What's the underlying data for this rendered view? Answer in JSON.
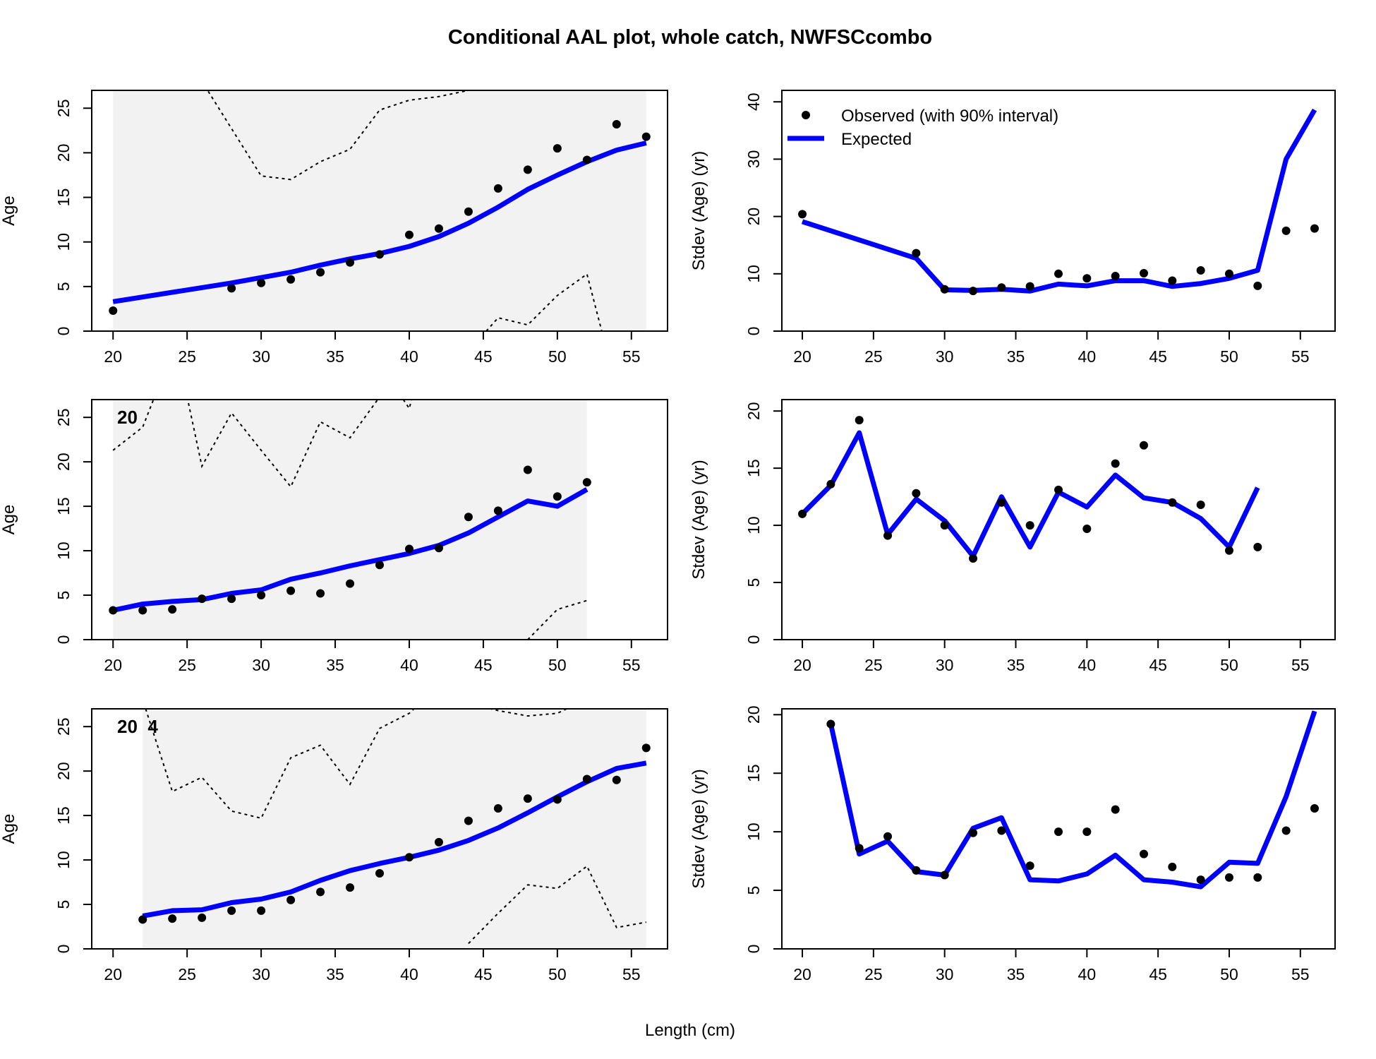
{
  "figure": {
    "title": "Conditional AAL plot, whole catch, NWFSCcombo",
    "xlabel": "Length (cm)"
  },
  "legend": {
    "observed_label": "Observed (with 90% interval)",
    "expected_label": "Expected"
  },
  "colors": {
    "expected": "#0000ff",
    "observed": "#000000",
    "interval": "#000000",
    "shade": "#f2f2f2"
  },
  "chart_data": [
    {
      "type": "line",
      "panel": "age-1",
      "row": 0,
      "col": 0,
      "ylabel": "Age",
      "panel_label": "",
      "xlim": [
        20,
        56
      ],
      "ylim": [
        0,
        27
      ],
      "xticks": [
        20,
        25,
        30,
        35,
        40,
        45,
        50,
        55
      ],
      "yticks": [
        0,
        5,
        10,
        15,
        20,
        25
      ],
      "shade_range": [
        20,
        56
      ],
      "observed": {
        "x": [
          20,
          28,
          30,
          32,
          34,
          36,
          38,
          40,
          42,
          44,
          46,
          48,
          50,
          52,
          54,
          56
        ],
        "y": [
          2.3,
          4.8,
          5.4,
          5.8,
          6.6,
          7.7,
          8.6,
          10.8,
          11.5,
          13.4,
          16.0,
          18.1,
          20.5,
          19.2,
          23.2,
          21.8
        ]
      },
      "expected": {
        "x": [
          20,
          28,
          30,
          32,
          34,
          36,
          38,
          40,
          42,
          44,
          46,
          48,
          50,
          52,
          54,
          56
        ],
        "y": [
          3.3,
          5.4,
          6.0,
          6.6,
          7.4,
          8.1,
          8.7,
          9.5,
          10.6,
          12.1,
          13.9,
          15.9,
          17.5,
          19.0,
          20.3,
          21.1
        ]
      },
      "upper": {
        "x": [
          26.2,
          30,
          32,
          34,
          36,
          38,
          40,
          42,
          44,
          44.7
        ],
        "y": [
          27.5,
          17.4,
          17.0,
          19.0,
          20.4,
          24.8,
          25.9,
          26.3,
          27.0,
          27.5
        ]
      },
      "lower": {
        "x": [
          45.2,
          46,
          48,
          50,
          52,
          53.0
        ],
        "y": [
          0,
          1.5,
          0.7,
          4.0,
          6.4,
          0
        ]
      }
    },
    {
      "type": "line",
      "panel": "sd-1",
      "row": 0,
      "col": 1,
      "ylabel": "Stdev (Age) (yr)",
      "xlim": [
        20,
        56
      ],
      "ylim": [
        0,
        42
      ],
      "xticks": [
        20,
        25,
        30,
        35,
        40,
        45,
        50,
        55
      ],
      "yticks": [
        0,
        10,
        20,
        30,
        40
      ],
      "observed": {
        "x": [
          20,
          28,
          30,
          32,
          34,
          36,
          38,
          40,
          42,
          44,
          46,
          48,
          50,
          52,
          54,
          56
        ],
        "y": [
          20.4,
          13.6,
          7.3,
          7.0,
          7.6,
          7.8,
          10.0,
          9.2,
          9.6,
          10.1,
          8.8,
          10.6,
          10.0,
          7.9,
          17.5,
          17.9
        ]
      },
      "expected": {
        "x": [
          20,
          28,
          30,
          32,
          34,
          36,
          38,
          40,
          42,
          44,
          46,
          48,
          50,
          52,
          54,
          56
        ],
        "y": [
          19.1,
          12.7,
          7.2,
          7.1,
          7.3,
          7.0,
          8.2,
          7.9,
          8.8,
          8.8,
          7.8,
          8.3,
          9.2,
          10.6,
          30.0,
          38.6
        ]
      }
    },
    {
      "type": "line",
      "panel": "age-2",
      "row": 1,
      "col": 0,
      "ylabel": "Age",
      "panel_label": "20",
      "xlim": [
        20,
        56
      ],
      "ylim": [
        0,
        27
      ],
      "xticks": [
        20,
        25,
        30,
        35,
        40,
        45,
        50,
        55
      ],
      "yticks": [
        0,
        5,
        10,
        15,
        20,
        25
      ],
      "shade_range": [
        20,
        52
      ],
      "observed": {
        "x": [
          20,
          22,
          24,
          26,
          28,
          30,
          32,
          34,
          36,
          38,
          40,
          42,
          44,
          46,
          48,
          50,
          52
        ],
        "y": [
          3.3,
          3.3,
          3.4,
          4.6,
          4.6,
          5.0,
          5.5,
          5.2,
          6.3,
          8.4,
          10.2,
          10.3,
          13.8,
          14.5,
          19.1,
          16.1,
          17.7
        ]
      },
      "expected": {
        "x": [
          20,
          22,
          24,
          26,
          28,
          30,
          32,
          34,
          36,
          38,
          40,
          42,
          44,
          46,
          48,
          50,
          52
        ],
        "y": [
          3.3,
          4.0,
          4.3,
          4.5,
          5.2,
          5.6,
          6.8,
          7.5,
          8.3,
          9.0,
          9.7,
          10.6,
          12.0,
          13.8,
          15.6,
          15.0,
          16.9
        ]
      },
      "upper": [
        {
          "x": [
            20,
            22,
            22.8
          ],
          "y": [
            21.3,
            23.9,
            27.3
          ]
        },
        {
          "x": [
            25.0,
            26,
            28,
            30,
            32,
            34,
            36,
            38,
            38.5
          ],
          "y": [
            27.3,
            19.5,
            25.5,
            21.3,
            17.2,
            24.5,
            22.7,
            27.3,
            28.0
          ]
        },
        {
          "x": [
            39.6,
            40,
            40.2
          ],
          "y": [
            27.0,
            26.0,
            27.3
          ]
        }
      ],
      "lower": {
        "x": [
          48.0,
          50,
          52
        ],
        "y": [
          0,
          3.4,
          4.4
        ]
      }
    },
    {
      "type": "line",
      "panel": "sd-2",
      "row": 1,
      "col": 1,
      "ylabel": "Stdev (Age) (yr)",
      "xlim": [
        20,
        56
      ],
      "ylim": [
        0,
        21
      ],
      "xticks": [
        20,
        25,
        30,
        35,
        40,
        45,
        50,
        55
      ],
      "yticks": [
        0,
        5,
        10,
        15,
        20
      ],
      "observed": {
        "x": [
          20,
          22,
          24,
          26,
          28,
          30,
          32,
          34,
          36,
          38,
          40,
          42,
          44,
          46,
          48,
          50,
          52
        ],
        "y": [
          11.0,
          13.6,
          19.2,
          9.1,
          12.8,
          10.0,
          7.1,
          12.0,
          10.0,
          13.1,
          9.7,
          15.4,
          17.0,
          12.0,
          11.8,
          7.8,
          8.1
        ]
      },
      "expected": {
        "x": [
          20,
          22,
          24,
          26,
          28,
          30,
          32,
          34,
          36,
          38,
          40,
          42,
          44,
          46,
          48,
          50,
          52
        ],
        "y": [
          11.0,
          13.5,
          18.1,
          9.2,
          12.3,
          10.4,
          7.3,
          12.5,
          8.1,
          12.9,
          11.6,
          14.4,
          12.4,
          12.0,
          10.6,
          8.1,
          13.3
        ]
      }
    },
    {
      "type": "line",
      "panel": "age-3",
      "row": 2,
      "col": 0,
      "ylabel": "Age",
      "panel_label": "20  4",
      "xlim": [
        20,
        56
      ],
      "ylim": [
        0,
        27
      ],
      "xticks": [
        20,
        25,
        30,
        35,
        40,
        45,
        50,
        55
      ],
      "yticks": [
        0,
        5,
        10,
        15,
        20,
        25
      ],
      "shade_range": [
        22,
        56
      ],
      "observed": {
        "x": [
          22,
          24,
          26,
          28,
          30,
          32,
          34,
          36,
          38,
          40,
          42,
          44,
          46,
          48,
          50,
          52,
          54,
          56
        ],
        "y": [
          3.3,
          3.4,
          3.5,
          4.3,
          4.3,
          5.5,
          6.4,
          6.9,
          8.5,
          10.3,
          12.0,
          14.4,
          15.8,
          16.9,
          16.8,
          19.1,
          19.0,
          22.6
        ]
      },
      "expected": {
        "x": [
          22,
          24,
          26,
          28,
          30,
          32,
          34,
          36,
          38,
          40,
          42,
          44,
          46,
          48,
          50,
          52,
          54,
          56
        ],
        "y": [
          3.7,
          4.3,
          4.4,
          5.2,
          5.6,
          6.4,
          7.7,
          8.8,
          9.6,
          10.3,
          11.1,
          12.2,
          13.6,
          15.3,
          17.1,
          18.8,
          20.3,
          20.9
        ]
      },
      "upper": [
        {
          "x": [
            22.2,
            24,
            26,
            28,
            30,
            32,
            34,
            36,
            38,
            40,
            40.5
          ],
          "y": [
            27.0,
            17.7,
            19.3,
            15.5,
            14.7,
            21.5,
            22.9,
            18.5,
            24.8,
            26.5,
            27.3
          ]
        },
        {
          "x": [
            45.0,
            46,
            48,
            50,
            51.0
          ],
          "y": [
            27.2,
            26.8,
            26.2,
            26.5,
            27.3
          ]
        }
      ],
      "lower": {
        "x": [
          44,
          46,
          48,
          50,
          52,
          54,
          56
        ],
        "y": [
          0.6,
          4.0,
          7.2,
          6.8,
          9.3,
          2.4,
          3.0
        ]
      }
    },
    {
      "type": "line",
      "panel": "sd-3",
      "row": 2,
      "col": 1,
      "ylabel": "Stdev (Age) (yr)",
      "xlim": [
        20,
        56
      ],
      "ylim": [
        0,
        20.5
      ],
      "xticks": [
        20,
        25,
        30,
        35,
        40,
        45,
        50,
        55
      ],
      "yticks": [
        0,
        5,
        10,
        15,
        20
      ],
      "observed": {
        "x": [
          22,
          24,
          26,
          28,
          30,
          32,
          34,
          36,
          38,
          40,
          42,
          44,
          46,
          48,
          50,
          52,
          54,
          56
        ],
        "y": [
          19.2,
          8.6,
          9.6,
          6.7,
          6.3,
          9.9,
          10.1,
          7.1,
          10.0,
          10.0,
          11.9,
          8.1,
          7.0,
          5.9,
          6.1,
          6.1,
          10.1,
          12.0
        ]
      },
      "expected": {
        "x": [
          22,
          24,
          26,
          28,
          30,
          32,
          34,
          36,
          38,
          40,
          42,
          44,
          46,
          48,
          50,
          52,
          54,
          56
        ],
        "y": [
          19.2,
          8.1,
          9.2,
          6.6,
          6.3,
          10.3,
          11.2,
          5.9,
          5.8,
          6.4,
          8.0,
          5.9,
          5.7,
          5.3,
          7.4,
          7.3,
          13.0,
          20.3
        ]
      }
    }
  ]
}
